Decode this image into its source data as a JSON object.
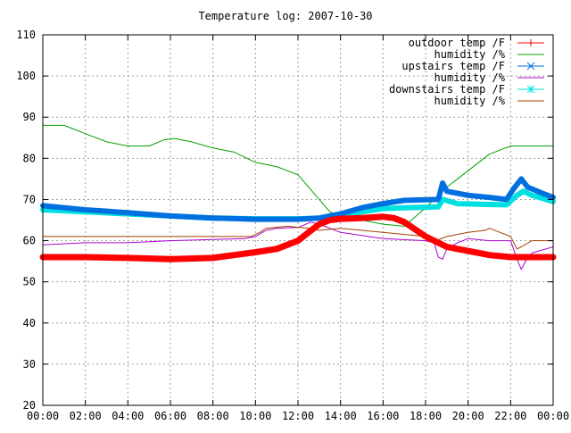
{
  "chart_data": {
    "type": "line",
    "title": "Temperature log: 2007-10-30",
    "xlabel": "",
    "ylabel": "",
    "x_ticks": [
      "00:00",
      "02:00",
      "04:00",
      "06:00",
      "08:00",
      "10:00",
      "12:00",
      "14:00",
      "16:00",
      "18:00",
      "20:00",
      "22:00",
      "00:00"
    ],
    "y_ticks": [
      20,
      30,
      40,
      50,
      60,
      70,
      80,
      90,
      100,
      110
    ],
    "xlim": [
      0,
      24
    ],
    "ylim": [
      20,
      110
    ],
    "grid": true,
    "legend_position": "top-right",
    "series": [
      {
        "name": "outdoor temp /F",
        "color": "#ff0000",
        "marker": "plus",
        "style": "thick",
        "points": [
          [
            0,
            56
          ],
          [
            2,
            56
          ],
          [
            4,
            55.8
          ],
          [
            6,
            55.5
          ],
          [
            8,
            55.8
          ],
          [
            9,
            56.5
          ],
          [
            10,
            57.2
          ],
          [
            11,
            58
          ],
          [
            12,
            60
          ],
          [
            12.5,
            62
          ],
          [
            13,
            64
          ],
          [
            13.5,
            65
          ],
          [
            14,
            65.3
          ],
          [
            15,
            65.5
          ],
          [
            16,
            65.8
          ],
          [
            16.5,
            65.5
          ],
          [
            17,
            64.5
          ],
          [
            18,
            61
          ],
          [
            19,
            58.5
          ],
          [
            20,
            57.5
          ],
          [
            21,
            56.5
          ],
          [
            22,
            56
          ],
          [
            24,
            56
          ]
        ]
      },
      {
        "name": "humidity /%",
        "color": "#00a000",
        "marker": "none",
        "style": "line",
        "points": [
          [
            0,
            88
          ],
          [
            1,
            88
          ],
          [
            2,
            86
          ],
          [
            3,
            84
          ],
          [
            4,
            83
          ],
          [
            5,
            83
          ],
          [
            5.7,
            84.5
          ],
          [
            6.2,
            84.8
          ],
          [
            7,
            84
          ],
          [
            8,
            82.5
          ],
          [
            9,
            81.5
          ],
          [
            10,
            79
          ],
          [
            11,
            78
          ],
          [
            12,
            76
          ],
          [
            12.5,
            73
          ],
          [
            13,
            70
          ],
          [
            13.5,
            67
          ],
          [
            14,
            66
          ],
          [
            14.5,
            65.5
          ],
          [
            15,
            65
          ],
          [
            16,
            64
          ],
          [
            17,
            63.5
          ],
          [
            18,
            68
          ],
          [
            18.5,
            70.5
          ],
          [
            19,
            73
          ],
          [
            20,
            77
          ],
          [
            21,
            81
          ],
          [
            22,
            83
          ],
          [
            23,
            83
          ],
          [
            24,
            83
          ]
        ]
      },
      {
        "name": "upstairs temp /F",
        "color": "#0070e0",
        "marker": "cross",
        "style": "thick",
        "points": [
          [
            0,
            68.5
          ],
          [
            2,
            67.5
          ],
          [
            4,
            66.8
          ],
          [
            6,
            66
          ],
          [
            8,
            65.5
          ],
          [
            10,
            65.2
          ],
          [
            12,
            65.2
          ],
          [
            13,
            65.5
          ],
          [
            14,
            66.5
          ],
          [
            15,
            68
          ],
          [
            16,
            69
          ],
          [
            17,
            69.8
          ],
          [
            18.6,
            70
          ],
          [
            18.8,
            74
          ],
          [
            19,
            72
          ],
          [
            20,
            71
          ],
          [
            21,
            70.5
          ],
          [
            21.8,
            70
          ],
          [
            22.2,
            73
          ],
          [
            22.5,
            75
          ],
          [
            22.8,
            73
          ],
          [
            23.5,
            71.5
          ],
          [
            24,
            70.5
          ]
        ]
      },
      {
        "name": "humidity /%",
        "color": "#b000d0",
        "marker": "none",
        "style": "line",
        "points": [
          [
            0,
            59
          ],
          [
            2,
            59.5
          ],
          [
            4,
            59.5
          ],
          [
            6,
            60
          ],
          [
            8,
            60.3
          ],
          [
            9.5,
            60.5
          ],
          [
            10,
            61
          ],
          [
            10.5,
            62.5
          ],
          [
            11,
            63
          ],
          [
            12,
            63.2
          ],
          [
            12.6,
            64.5
          ],
          [
            13,
            64
          ],
          [
            14,
            62
          ],
          [
            16,
            60.5
          ],
          [
            18,
            60
          ],
          [
            18.4,
            59.5
          ],
          [
            18.6,
            56
          ],
          [
            18.8,
            55.5
          ],
          [
            19,
            58
          ],
          [
            19.5,
            59.5
          ],
          [
            20,
            60.5
          ],
          [
            21,
            60
          ],
          [
            22,
            60
          ],
          [
            22.3,
            55.5
          ],
          [
            22.5,
            53
          ],
          [
            22.7,
            55
          ],
          [
            23,
            57
          ],
          [
            24,
            58.5
          ]
        ]
      },
      {
        "name": "downstairs temp /F",
        "color": "#00e0e0",
        "marker": "star",
        "style": "thick",
        "points": [
          [
            0,
            67.5
          ],
          [
            2,
            67
          ],
          [
            4,
            66.5
          ],
          [
            6,
            66
          ],
          [
            8,
            65.5
          ],
          [
            10,
            65.3
          ],
          [
            12,
            65.3
          ],
          [
            13,
            65.5
          ],
          [
            14,
            66
          ],
          [
            15,
            67
          ],
          [
            16,
            67.8
          ],
          [
            17,
            68
          ],
          [
            18.6,
            68.2
          ],
          [
            18.8,
            70
          ],
          [
            19.5,
            69
          ],
          [
            21,
            68.8
          ],
          [
            21.8,
            68.7
          ],
          [
            22.3,
            71
          ],
          [
            22.6,
            72
          ],
          [
            23,
            71
          ],
          [
            24,
            69.5
          ]
        ]
      },
      {
        "name": "humidity /%",
        "color": "#a04000",
        "marker": "none",
        "style": "line",
        "points": [
          [
            0,
            61
          ],
          [
            4,
            61
          ],
          [
            8,
            61
          ],
          [
            9.8,
            61
          ],
          [
            10.2,
            62
          ],
          [
            10.5,
            63
          ],
          [
            11.5,
            63.5
          ],
          [
            12.5,
            63
          ],
          [
            13,
            62.5
          ],
          [
            14,
            63
          ],
          [
            15,
            62.5
          ],
          [
            16,
            62
          ],
          [
            17,
            61.5
          ],
          [
            18,
            61
          ],
          [
            18.5,
            60
          ],
          [
            19,
            61
          ],
          [
            20,
            62
          ],
          [
            20.8,
            62.5
          ],
          [
            21,
            63
          ],
          [
            21.5,
            62
          ],
          [
            22,
            61
          ],
          [
            22.3,
            58
          ],
          [
            22.5,
            58.5
          ],
          [
            23,
            60
          ],
          [
            24,
            60
          ]
        ]
      }
    ]
  }
}
